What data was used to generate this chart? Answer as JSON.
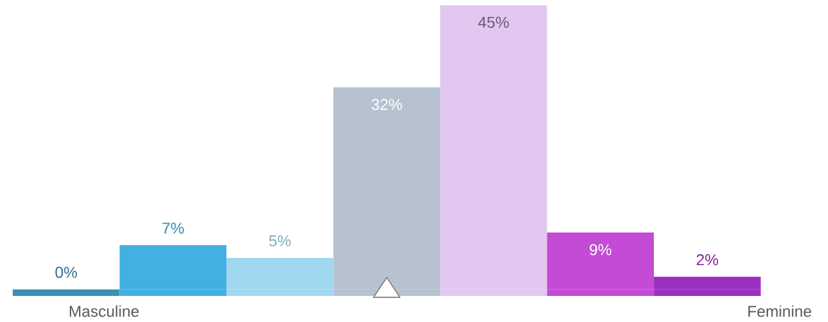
{
  "chart_data": {
    "type": "bar",
    "categories": [
      null,
      null,
      null,
      null,
      null,
      null,
      null
    ],
    "values": [
      0,
      7,
      5,
      32,
      45,
      9,
      2
    ],
    "value_labels": [
      "0%",
      "7%",
      "5%",
      "32%",
      "45%",
      "9%",
      "2%"
    ],
    "colors": [
      "#3a8fb7",
      "#42b0e0",
      "#a0d8ef",
      "#b7c2d0",
      "#e2c8f0",
      "#c44bd6",
      "#9b2fc0"
    ],
    "tick_labels": false,
    "annotations": [
      "Masculine",
      "Feminine"
    ]
  }
}
